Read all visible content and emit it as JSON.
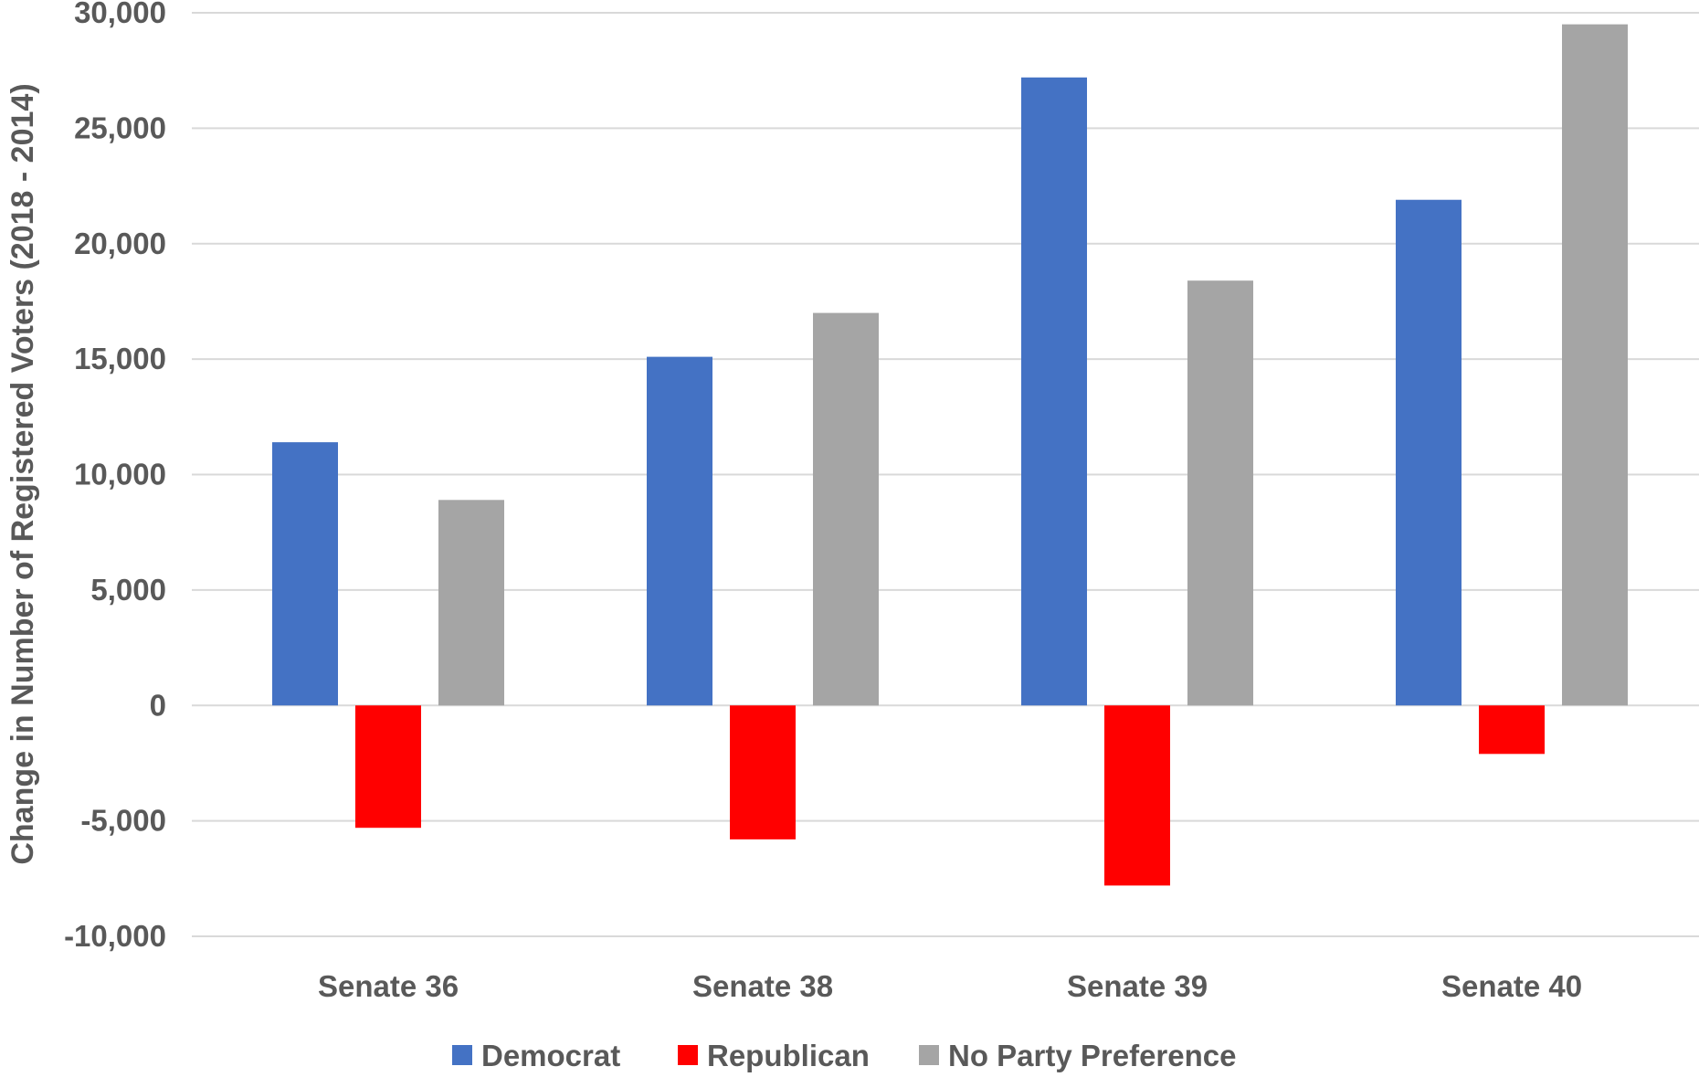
{
  "chart_data": {
    "type": "bar",
    "title": "",
    "xlabel": "",
    "ylabel": "Change in Number of Registered Voters (2018 - 2014)",
    "categories": [
      "Senate 36",
      "Senate 38",
      "Senate 39",
      "Senate 40"
    ],
    "series": [
      {
        "name": "Democrat",
        "color": "#4472C4",
        "values": [
          11400,
          15100,
          27200,
          21900
        ]
      },
      {
        "name": "Republican",
        "color": "#FF0000",
        "values": [
          -5300,
          -5800,
          -7800,
          -2100
        ]
      },
      {
        "name": "No Party Preference",
        "color": "#A5A5A5",
        "values": [
          8900,
          17000,
          18400,
          29500
        ]
      }
    ],
    "ylim": [
      -10000,
      30000
    ],
    "yticks": [
      -10000,
      -5000,
      0,
      5000,
      10000,
      15000,
      20000,
      25000,
      30000
    ],
    "ytick_labels": [
      "-10,000",
      "-5,000",
      "0",
      "5,000",
      "10,000",
      "15,000",
      "20,000",
      "25,000",
      "30,000"
    ],
    "grid": true,
    "legend_position": "bottom"
  }
}
